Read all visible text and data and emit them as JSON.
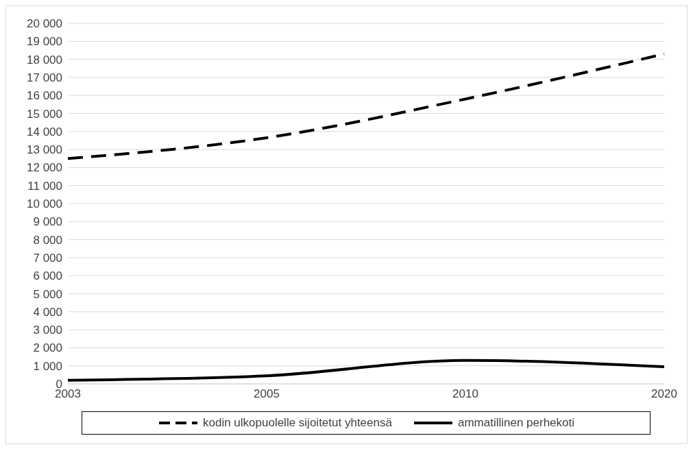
{
  "chart_data": {
    "type": "line",
    "categories": [
      "2003",
      "2005",
      "2010",
      "2020"
    ],
    "series": [
      {
        "name": "kodin ulkopuolelle sijoitetut yhteensä",
        "color": "#000000",
        "line_style": "dashed",
        "values": [
          12500,
          13650,
          15800,
          18300
        ]
      },
      {
        "name": "ammatillinen perhekoti",
        "color": "#000000",
        "line_style": "solid",
        "values": [
          200,
          450,
          1300,
          950
        ]
      }
    ],
    "ylim": [
      0,
      20000
    ],
    "yticks": [
      {
        "value": 0,
        "label": "0"
      },
      {
        "value": 1000,
        "label": "1 000"
      },
      {
        "value": 2000,
        "label": "2 000"
      },
      {
        "value": 3000,
        "label": "3 000"
      },
      {
        "value": 4000,
        "label": "4 000"
      },
      {
        "value": 5000,
        "label": "5 000"
      },
      {
        "value": 6000,
        "label": "6 000"
      },
      {
        "value": 7000,
        "label": "7 000"
      },
      {
        "value": 8000,
        "label": "8 000"
      },
      {
        "value": 9000,
        "label": "9 000"
      },
      {
        "value": 10000,
        "label": "10 000"
      },
      {
        "value": 11000,
        "label": "11 000"
      },
      {
        "value": 12000,
        "label": "12 000"
      },
      {
        "value": 13000,
        "label": "13 000"
      },
      {
        "value": 14000,
        "label": "14 000"
      },
      {
        "value": 15000,
        "label": "15 000"
      },
      {
        "value": 16000,
        "label": "16 000"
      },
      {
        "value": 17000,
        "label": "17 000"
      },
      {
        "value": 18000,
        "label": "18 000"
      },
      {
        "value": 19000,
        "label": "19 000"
      },
      {
        "value": 20000,
        "label": "20 000"
      }
    ],
    "grid": "y",
    "legend": "bottom",
    "marker": "none"
  }
}
